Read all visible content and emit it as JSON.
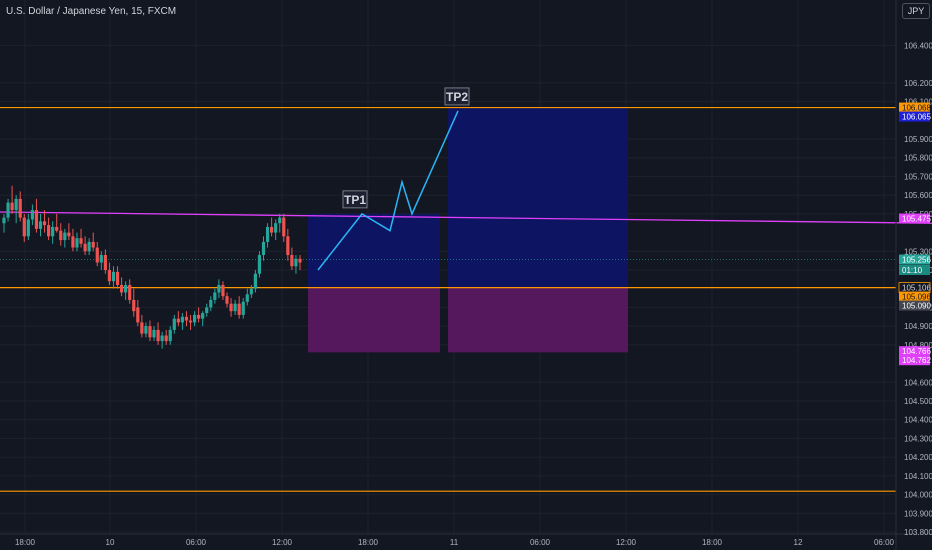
{
  "header": {
    "title": "U.S. Dollar / Japanese Yen, 15, FXCM",
    "currency": "JPY"
  },
  "colors": {
    "background": "#131722",
    "up": "#26a69a",
    "down": "#ef5350",
    "orange": "#ff9800",
    "magenta": "#e040fb",
    "tp_blue": "#0d1465",
    "sl_purple": "#5a1860",
    "path": "#29b6f6"
  },
  "chart_data": {
    "type": "candlestick",
    "instrument": "USD/JPY",
    "timeframe": "15",
    "ylim": [
      103.8,
      106.6
    ],
    "y_ticks": [
      "106.400",
      "106.200",
      "106.100",
      "105.900",
      "105.800",
      "105.700",
      "105.600",
      "105.500",
      "105.300",
      "105.200",
      "105.000",
      "104.900",
      "104.800",
      "104.600",
      "104.500",
      "104.400",
      "104.300",
      "104.200",
      "104.100",
      "104.000",
      "103.900",
      "103.800"
    ],
    "x_ticks": [
      "18:00",
      "10",
      "06:00",
      "12:00",
      "18:00",
      "11",
      "06:00",
      "12:00",
      "18:00",
      "12",
      "06:00"
    ],
    "horizontal_levels": [
      106.068,
      105.106,
      104.018
    ],
    "trendline": {
      "from": 105.51,
      "to": 105.45
    },
    "price_tags": [
      {
        "label": "106.068",
        "value": 106.068,
        "kind": "orange"
      },
      {
        "label": "106.065",
        "value": 106.065,
        "kind": "blue"
      },
      {
        "label": "105.475",
        "value": 105.475,
        "kind": "magenta"
      },
      {
        "label": "105.256",
        "value": 105.256,
        "kind": "teal"
      },
      {
        "label": "01:10",
        "value": 105.2,
        "kind": "timer"
      },
      {
        "label": "105.106",
        "value": 105.106,
        "kind": "orange-outline"
      },
      {
        "label": "105.096",
        "value": 105.096,
        "kind": "orange"
      },
      {
        "label": "105.090",
        "value": 105.09,
        "kind": "grey"
      },
      {
        "label": "104.766",
        "value": 104.766,
        "kind": "magenta"
      },
      {
        "label": "104.762",
        "value": 104.762,
        "kind": "magenta"
      }
    ],
    "positions": [
      {
        "entry": 105.106,
        "target": 105.5,
        "stop": 104.76
      },
      {
        "entry": 105.106,
        "target": 106.068,
        "stop": 104.76
      }
    ],
    "projection_path": [
      105.2,
      105.5,
      105.41,
      105.67,
      105.5,
      106.05
    ],
    "targets": [
      {
        "label": "TP1",
        "value": 105.5
      },
      {
        "label": "TP2",
        "value": 106.05
      }
    ],
    "candles": [
      [
        105.45,
        105.5,
        105.4,
        105.48
      ],
      [
        105.48,
        105.58,
        105.46,
        105.56
      ],
      [
        105.56,
        105.65,
        105.5,
        105.52
      ],
      [
        105.52,
        105.6,
        105.45,
        105.58
      ],
      [
        105.58,
        105.62,
        105.46,
        105.48
      ],
      [
        105.48,
        105.5,
        105.35,
        105.38
      ],
      [
        105.38,
        105.5,
        105.36,
        105.47
      ],
      [
        105.47,
        105.55,
        105.44,
        105.52
      ],
      [
        105.52,
        105.58,
        105.4,
        105.42
      ],
      [
        105.42,
        105.5,
        105.38,
        105.46
      ],
      [
        105.46,
        105.52,
        105.4,
        105.44
      ],
      [
        105.44,
        105.48,
        105.36,
        105.38
      ],
      [
        105.38,
        105.46,
        105.34,
        105.43
      ],
      [
        105.43,
        105.5,
        105.4,
        105.41
      ],
      [
        105.41,
        105.45,
        105.33,
        105.36
      ],
      [
        105.36,
        105.42,
        105.32,
        105.4
      ],
      [
        105.4,
        105.45,
        105.36,
        105.38
      ],
      [
        105.38,
        105.42,
        105.3,
        105.32
      ],
      [
        105.32,
        105.4,
        105.3,
        105.37
      ],
      [
        105.37,
        105.42,
        105.32,
        105.34
      ],
      [
        105.34,
        105.38,
        105.28,
        105.3
      ],
      [
        105.3,
        105.37,
        105.28,
        105.35
      ],
      [
        105.35,
        105.4,
        105.3,
        105.32
      ],
      [
        105.32,
        105.35,
        105.22,
        105.24
      ],
      [
        105.24,
        105.3,
        105.2,
        105.28
      ],
      [
        105.28,
        105.31,
        105.18,
        105.2
      ],
      [
        105.2,
        105.24,
        105.12,
        105.14
      ],
      [
        105.14,
        105.22,
        105.1,
        105.19
      ],
      [
        105.19,
        105.22,
        105.1,
        105.12
      ],
      [
        105.12,
        105.16,
        105.06,
        105.08
      ],
      [
        105.08,
        105.14,
        105.04,
        105.12
      ],
      [
        105.12,
        105.15,
        105.02,
        105.04
      ],
      [
        105.04,
        105.1,
        104.95,
        104.98
      ],
      [
        105,
        105.04,
        104.9,
        104.92
      ],
      [
        104.92,
        104.96,
        104.84,
        104.86
      ],
      [
        104.86,
        104.92,
        104.84,
        104.9
      ],
      [
        104.9,
        104.93,
        104.82,
        104.84
      ],
      [
        104.84,
        104.9,
        104.82,
        104.88
      ],
      [
        104.88,
        104.92,
        104.8,
        104.82
      ],
      [
        104.82,
        104.87,
        104.78,
        104.85
      ],
      [
        104.85,
        104.88,
        104.8,
        104.82
      ],
      [
        104.82,
        104.9,
        104.8,
        104.88
      ],
      [
        104.88,
        104.96,
        104.86,
        104.94
      ],
      [
        104.94,
        104.98,
        104.9,
        104.92
      ],
      [
        104.92,
        104.97,
        104.88,
        104.95
      ],
      [
        104.95,
        104.98,
        104.9,
        104.93
      ],
      [
        104.93,
        104.96,
        104.88,
        104.92
      ],
      [
        104.92,
        104.98,
        104.9,
        104.96
      ],
      [
        104.96,
        105,
        104.92,
        104.94
      ],
      [
        104.94,
        104.98,
        104.9,
        104.97
      ],
      [
        104.97,
        105.02,
        104.95,
        105
      ],
      [
        105,
        105.06,
        104.98,
        105.04
      ],
      [
        105.04,
        105.1,
        105.02,
        105.08
      ],
      [
        105.08,
        105.15,
        105.05,
        105.12
      ],
      [
        105.12,
        105.14,
        105.04,
        105.06
      ],
      [
        105.06,
        105.08,
        105,
        105.02
      ],
      [
        105.02,
        105.05,
        104.95,
        104.98
      ],
      [
        104.98,
        105.04,
        104.96,
        105.02
      ],
      [
        105.02,
        105.06,
        104.94,
        104.96
      ],
      [
        104.96,
        105.05,
        104.94,
        105.03
      ],
      [
        105.03,
        105.1,
        105.01,
        105.07
      ],
      [
        105.07,
        105.12,
        105.05,
        105.1
      ],
      [
        105.1,
        105.2,
        105.08,
        105.18
      ],
      [
        105.18,
        105.3,
        105.16,
        105.28
      ],
      [
        105.28,
        105.38,
        105.25,
        105.35
      ],
      [
        105.35,
        105.45,
        105.32,
        105.43
      ],
      [
        105.43,
        105.48,
        105.38,
        105.4
      ],
      [
        105.4,
        105.47,
        105.36,
        105.45
      ],
      [
        105.45,
        105.5,
        105.4,
        105.48
      ],
      [
        105.48,
        105.5,
        105.35,
        105.38
      ],
      [
        105.38,
        105.42,
        105.25,
        105.28
      ],
      [
        105.28,
        105.32,
        105.2,
        105.22
      ],
      [
        105.22,
        105.28,
        105.18,
        105.26
      ],
      [
        105.26,
        105.28,
        105.2,
        105.24
      ]
    ]
  }
}
